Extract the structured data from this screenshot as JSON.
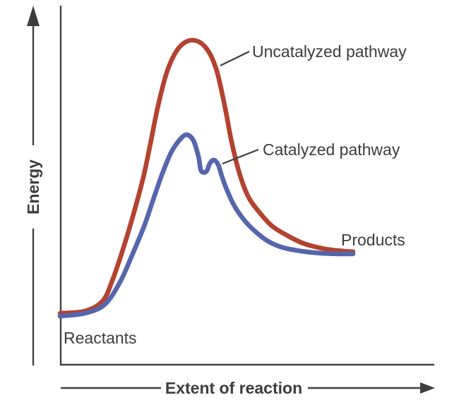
{
  "figure": {
    "y_axis_label": "Energy",
    "x_axis_label": "Extent of reaction"
  },
  "annotations": {
    "uncatalyzed_label": "Uncatalyzed pathway",
    "catalyzed_label": "Catalyzed pathway",
    "products_label": "Products",
    "reactants_label": "Reactants"
  },
  "colors": {
    "uncatalyzed_curve": "#b3432f",
    "catalyzed_curve": "#5566ae",
    "axis": "#414042",
    "text": "#3d3d3d"
  },
  "chart_data": {
    "type": "line",
    "xlabel": "Extent of reaction",
    "ylabel": "Energy",
    "x_range": [
      0,
      100
    ],
    "y_range": [
      0,
      100
    ],
    "grid": false,
    "legend_position": "inline-annotations",
    "key_levels": {
      "reactants_energy": 14.5,
      "products_energy": 31.3,
      "uncatalyzed_peak_energy": 90.4,
      "catalyzed_first_peak_energy": 64.1,
      "catalyzed_dip_energy": 54.0,
      "catalyzed_second_peak_energy": 57.1
    },
    "series": [
      {
        "name": "Uncatalyzed pathway",
        "color": "#b3432f",
        "points": [
          [
            0.0,
            14.5
          ],
          [
            6.6,
            15.1
          ],
          [
            11.3,
            17.8
          ],
          [
            13.8,
            23.1
          ],
          [
            17.0,
            32.9
          ],
          [
            19.8,
            42.7
          ],
          [
            22.3,
            52.5
          ],
          [
            24.3,
            62.4
          ],
          [
            26.2,
            72.2
          ],
          [
            28.7,
            82.0
          ],
          [
            31.7,
            88.2
          ],
          [
            35.3,
            90.4
          ],
          [
            38.9,
            88.4
          ],
          [
            41.7,
            82.5
          ],
          [
            44.0,
            72.2
          ],
          [
            45.8,
            62.4
          ],
          [
            47.9,
            53.5
          ],
          [
            50.4,
            46.7
          ],
          [
            53.4,
            42.4
          ],
          [
            56.6,
            38.8
          ],
          [
            60.4,
            36.3
          ],
          [
            65.1,
            33.9
          ],
          [
            70.8,
            32.4
          ],
          [
            75.5,
            31.8
          ],
          [
            78.3,
            31.6
          ]
        ]
      },
      {
        "name": "Catalyzed pathway",
        "color": "#5566ae",
        "points": [
          [
            0.0,
            13.7
          ],
          [
            6.6,
            14.5
          ],
          [
            11.9,
            16.9
          ],
          [
            16.0,
            23.1
          ],
          [
            19.4,
            31.0
          ],
          [
            22.5,
            38.8
          ],
          [
            25.1,
            46.7
          ],
          [
            27.4,
            53.5
          ],
          [
            29.8,
            59.4
          ],
          [
            32.3,
            63.1
          ],
          [
            34.0,
            64.1
          ],
          [
            35.7,
            62.4
          ],
          [
            37.0,
            58.0
          ],
          [
            37.7,
            54.1
          ],
          [
            39.1,
            53.9
          ],
          [
            40.0,
            56.1
          ],
          [
            41.1,
            57.1
          ],
          [
            42.3,
            55.7
          ],
          [
            43.2,
            52.7
          ],
          [
            44.5,
            49.0
          ],
          [
            46.4,
            44.7
          ],
          [
            48.9,
            40.8
          ],
          [
            51.9,
            37.5
          ],
          [
            55.3,
            34.7
          ],
          [
            59.1,
            32.9
          ],
          [
            64.2,
            31.8
          ],
          [
            69.8,
            31.2
          ],
          [
            74.5,
            31.0
          ],
          [
            78.3,
            31.0
          ]
        ]
      }
    ]
  }
}
